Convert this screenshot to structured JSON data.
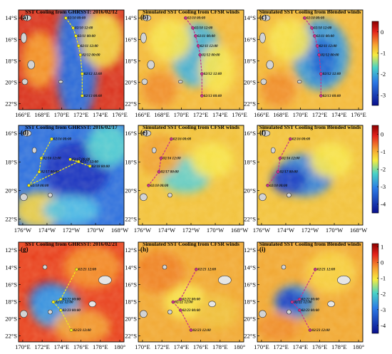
{
  "chart_data": [
    {
      "type": "heatmap",
      "panel": "(a)",
      "title": "SST Cooling from GHRSST: 2016/02/12",
      "ylabels": [
        "14°S",
        "16°S",
        "18°S",
        "20°S",
        "22°S"
      ],
      "xlabels": [
        "166°E",
        "168°E",
        "170°E",
        "172°E",
        "174°E",
        "176°E"
      ],
      "xlim": [
        "165.5°E",
        "177°E"
      ],
      "ylim": [
        "23°S",
        "13°S"
      ],
      "track": {
        "color": "#f2ec18",
        "points": [
          [
            "02/10 00:00",
            170.8,
            -13.8
          ],
          [
            "02/10 12:00",
            171.6,
            -14.8
          ],
          [
            "02/11 00:00",
            171.9,
            -15.6
          ],
          [
            "02/11 12:00",
            172.2,
            -16.6
          ],
          [
            "02/12 00:00",
            172.4,
            -17.5
          ],
          [
            "02/12 12:00",
            172.6,
            -19.4
          ],
          [
            "02/13 00:00",
            172.6,
            -21.6
          ]
        ]
      }
    },
    {
      "type": "heatmap",
      "panel": "(b)",
      "title": "Simulated SST Cooling from CFSR winds",
      "ylabels": [
        "14°S",
        "16°S",
        "18°S",
        "20°S",
        "22°S"
      ],
      "xlabels": [
        "166°E",
        "168°E",
        "170°E",
        "172°E",
        "174°E",
        "176°E"
      ],
      "track": {
        "color": "#c8338c",
        "points": [
          [
            "02/10 00:00",
            170.8,
            -13.8
          ],
          [
            "02/10 12:00",
            171.6,
            -14.8
          ],
          [
            "02/11 00:00",
            171.9,
            -15.6
          ],
          [
            "02/11 12:00",
            172.2,
            -16.6
          ],
          [
            "02/12 00:00",
            172.4,
            -17.5
          ],
          [
            "02/12 12:00",
            172.6,
            -19.4
          ],
          [
            "02/13 00:00",
            172.6,
            -21.6
          ]
        ]
      }
    },
    {
      "type": "heatmap",
      "panel": "(c)",
      "title": "Simulated SST Cooling from Blended winds",
      "ylabels": [
        "14°S",
        "16°S",
        "18°S",
        "20°S",
        "22°S"
      ],
      "xlabels": [
        "166°E",
        "168°E",
        "170°E",
        "172°E",
        "174°E",
        "176°E"
      ],
      "track": {
        "color": "#c8338c",
        "points": [
          [
            "02/10 00:00",
            170.8,
            -13.8
          ],
          [
            "02/10 12:00",
            171.6,
            -14.8
          ],
          [
            "02/11 00:00",
            171.9,
            -15.6
          ],
          [
            "02/11 12:00",
            172.2,
            -16.6
          ],
          [
            "02/12 00:00",
            172.4,
            -17.5
          ],
          [
            "02/12 12:00",
            172.6,
            -19.4
          ],
          [
            "02/13 00:00",
            172.6,
            -21.6
          ]
        ]
      }
    },
    {
      "type": "heatmap",
      "panel": "(d)",
      "title": "SST Cooling from GHRSST: 2016/02/17",
      "ylabels": [
        "16°S",
        "18°S",
        "20°S",
        "22°S"
      ],
      "xlabels": [
        "176°W",
        "174°W",
        "172°W",
        "170°W",
        "168°W"
      ],
      "track": {
        "color": "#f2ec18",
        "points": [
          [
            "02/16 00:00",
            174.0,
            -15.4
          ],
          [
            "02/16 12:00",
            175.0,
            -17.1
          ],
          [
            "02/17 00:00",
            175.2,
            -18.3
          ],
          [
            "02/18 00:00",
            176.2,
            -19.5
          ],
          [
            "02/17 12:00",
            171.4,
            -17.4
          ],
          [
            "02/17 00:00",
            172.2,
            -17.2
          ],
          [
            "02/18 00:00",
            170.3,
            -17.8
          ]
        ]
      }
    },
    {
      "type": "heatmap",
      "panel": "(e)",
      "title": "Simulated SST Cooling from CFSR winds",
      "ylabels": [
        "16°S",
        "18°S",
        "20°S",
        "22°S"
      ],
      "xlabels": [
        "176°W",
        "174°W",
        "172°W",
        "170°W",
        "168°W"
      ],
      "track": {
        "color": "#c8338c",
        "points": [
          [
            "02/16 00:00",
            174.0,
            -15.4
          ],
          [
            "02/16 12:00",
            175.0,
            -17.1
          ],
          [
            "02/17 00:00",
            175.2,
            -18.3
          ],
          [
            "02/18 00:00",
            176.2,
            -19.5
          ]
        ]
      }
    },
    {
      "type": "heatmap",
      "panel": "(f)",
      "title": "Simulated SST Cooling from Blended winds",
      "ylabels": [
        "16°S",
        "18°S",
        "20°S",
        "22°S"
      ],
      "xlabels": [
        "176°W",
        "174°W",
        "172°W",
        "170°W",
        "168°W"
      ],
      "track": {
        "color": "#c8338c",
        "points": [
          [
            "02/16 00:00",
            174.0,
            -15.4
          ],
          [
            "02/16 12:00",
            175.0,
            -17.1
          ],
          [
            "02/17 00:00",
            175.2,
            -18.3
          ],
          [
            "02/18 00:00",
            176.2,
            -19.5
          ]
        ]
      }
    },
    {
      "type": "heatmap",
      "panel": "(g)",
      "title": "SST Cooling from GHRSST: 2016/02/21",
      "ylabels": [
        "12°S",
        "14°S",
        "16°S",
        "18°S",
        "20°S",
        "22°S"
      ],
      "xlabels": [
        "170°E",
        "172°E",
        "174°E",
        "176°E",
        "178°E",
        "180°"
      ],
      "track": {
        "color": "#f2ec18",
        "points": [
          [
            "02/21 12:00",
            175.5,
            -15.0
          ],
          [
            "02/22 00:00",
            174.0,
            -18.3
          ],
          [
            "02/22 12:00",
            173.3,
            -18.6
          ],
          [
            "02/23 00:00",
            174.0,
            -19.5
          ],
          [
            "02/23 12:00",
            175.0,
            -21.7
          ]
        ]
      }
    },
    {
      "type": "heatmap",
      "panel": "(h)",
      "title": "Simulated SST Cooling from CFSR winds",
      "ylabels": [
        "12°S",
        "14°S",
        "16°S",
        "18°S",
        "20°S",
        "22°S"
      ],
      "xlabels": [
        "170°E",
        "172°E",
        "174°E",
        "176°E",
        "178°E",
        "180°"
      ],
      "track": {
        "color": "#c8338c",
        "points": [
          [
            "02/21 12:00",
            175.5,
            -15.0
          ],
          [
            "02/22 00:00",
            174.0,
            -18.3
          ],
          [
            "02/22 12:00",
            173.3,
            -18.6
          ],
          [
            "02/23 00:00",
            174.0,
            -19.5
          ],
          [
            "02/23 12:00",
            175.0,
            -21.7
          ]
        ]
      }
    },
    {
      "type": "heatmap",
      "panel": "(i)",
      "title": "Simulated SST Cooling from Blended winds",
      "ylabels": [
        "12°S",
        "14°S",
        "16°S",
        "18°S",
        "20°S",
        "22°S"
      ],
      "xlabels": [
        "170°E",
        "172°E",
        "174°E",
        "176°E",
        "178°E",
        "180°"
      ],
      "track": {
        "color": "#c8338c",
        "points": [
          [
            "02/21 12:00",
            175.5,
            -15.0
          ],
          [
            "02/22 00:00",
            174.0,
            -18.3
          ],
          [
            "02/22 12:00",
            173.3,
            -18.6
          ],
          [
            "02/23 00:00",
            174.0,
            -19.5
          ],
          [
            "02/23 12:00",
            175.0,
            -21.7
          ]
        ]
      }
    }
  ],
  "colorbars": [
    {
      "row": 1,
      "ticks": [
        "0",
        "-1",
        "-2",
        "-3"
      ],
      "range": [
        -3.5,
        0.5
      ]
    },
    {
      "row": 2,
      "ticks": [
        "0",
        "-1",
        "-2",
        "-3",
        "-4"
      ],
      "range": [
        -4.5,
        0.5
      ]
    },
    {
      "row": 3,
      "ticks": [
        "1",
        "0",
        "-1",
        "-2",
        "-3",
        "-4"
      ],
      "range": [
        -4.5,
        1.2
      ]
    }
  ],
  "colors": {
    "warm": "#e0301e",
    "neutral": "#f5d44a",
    "cool": "#37a0e6",
    "cold": "#1227b8",
    "land": "#c8c8c8"
  }
}
